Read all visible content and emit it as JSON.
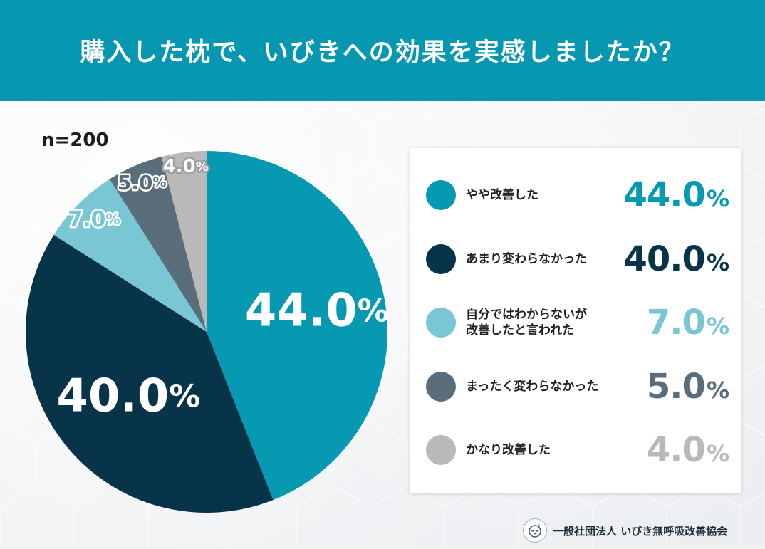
{
  "header": {
    "title": "購入した枕で、いびきへの効果を実感しましたか？"
  },
  "sample_size": "n=200",
  "chart_data": {
    "type": "pie",
    "title": "購入した枕で、いびきへの効果を実感しましたか？",
    "categories": [
      "やや改善した",
      "あまり変わらなかった",
      "自分ではわからないが\n改善したと言われた",
      "まったく変わらなかった",
      "かなり改善した"
    ],
    "values": [
      44.0,
      40.0,
      7.0,
      5.0,
      4.0
    ],
    "value_labels": [
      "44.0",
      "40.0",
      "7.0",
      "5.0",
      "4.0"
    ],
    "percent_symbol": "%",
    "colors": [
      "#0799b2",
      "#073449",
      "#79c6d4",
      "#5a6d7a",
      "#b9b9b9"
    ],
    "legend_position": "right",
    "start_angle": "top",
    "direction": "clockwise"
  },
  "footer": {
    "org_name": "一般社団法人 いびき無呼吸改善協会",
    "logo_icon": "sleeping-face-icon"
  }
}
